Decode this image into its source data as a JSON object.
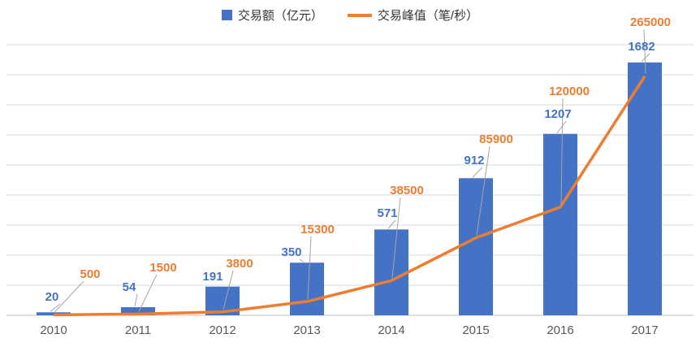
{
  "legend": {
    "position": "top"
  },
  "chart_data": {
    "type": "combo",
    "title": "",
    "categories": [
      "2010",
      "2011",
      "2012",
      "2013",
      "2014",
      "2015",
      "2016",
      "2017"
    ],
    "series": [
      {
        "name": "交易额（亿元）",
        "type": "bar",
        "color": "#4472C4",
        "values": [
          20,
          54,
          191,
          350,
          571,
          912,
          1207,
          1682
        ],
        "axis_min": 0,
        "axis_max": 1800
      },
      {
        "name": "交易峰值（笔/秒）",
        "type": "line",
        "color": "#ED7D31",
        "values": [
          500,
          1500,
          3800,
          15300,
          38500,
          85900,
          120000,
          265000
        ],
        "axis_min": 0,
        "axis_max": 300000
      }
    ],
    "grid": true,
    "gridline_color": "#d9d9d9",
    "axis_line_color": "#bfbfbf",
    "leader_line_color": "#a6a6a6",
    "x_label_color": "#595959",
    "legend_position": "top-center",
    "data_labels": true
  }
}
